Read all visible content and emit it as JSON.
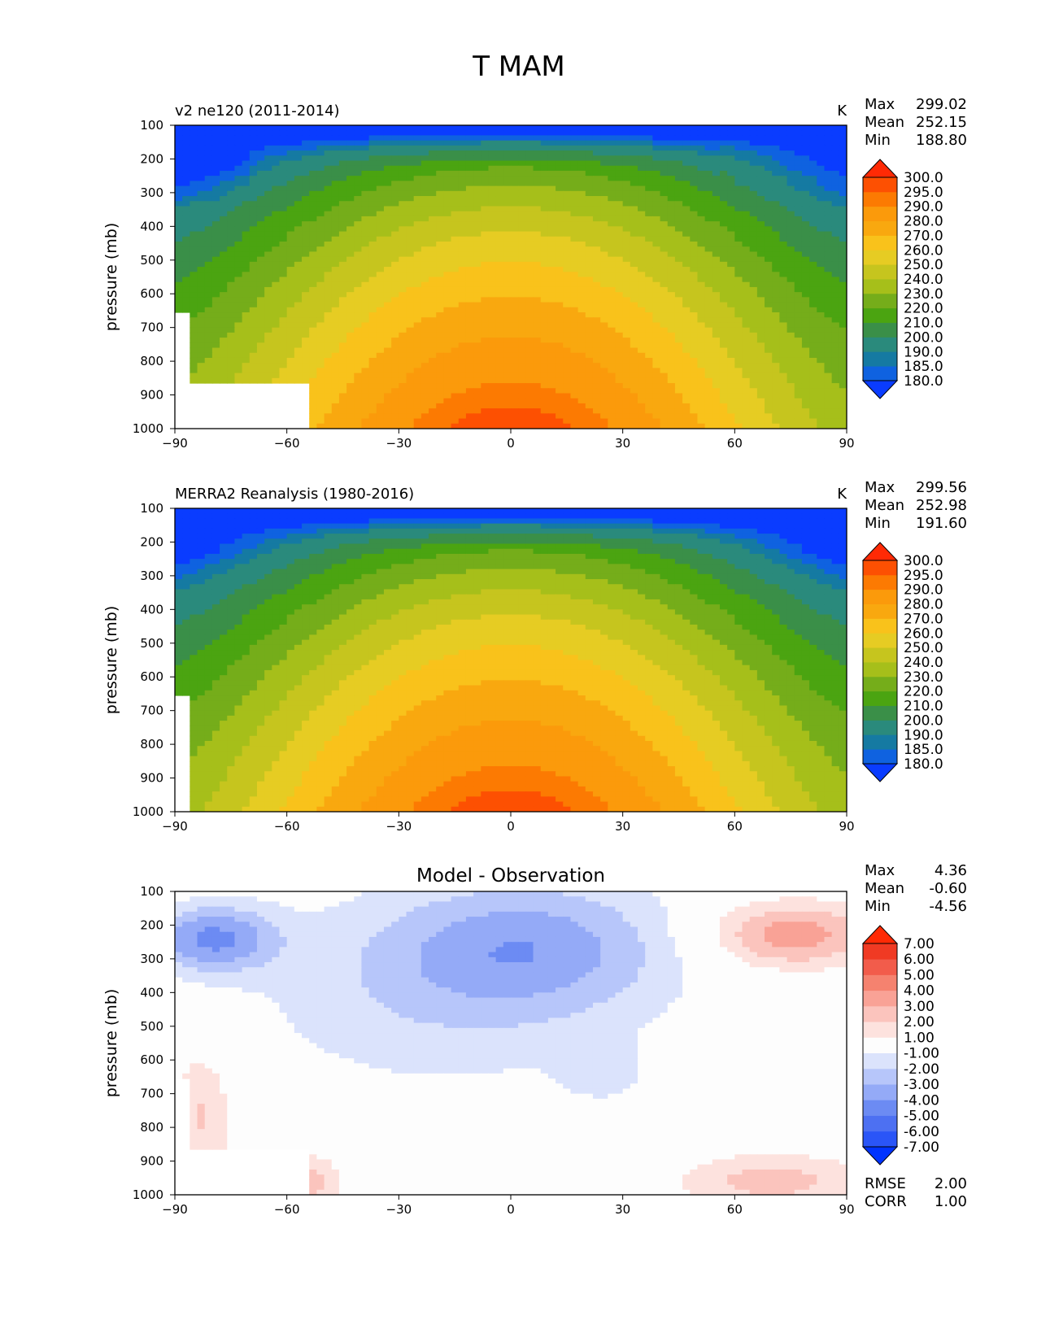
{
  "figure_title": "T MAM",
  "chart_data": [
    {
      "type": "contourf",
      "name": "model",
      "title": "v2 ne120 (2011-2014)",
      "units": "K",
      "xlabel": "",
      "ylabel": "pressure (mb)",
      "xlim": [
        -90,
        90
      ],
      "ylim": [
        1000,
        100
      ],
      "xticks": [
        "−90",
        "−60",
        "−30",
        "0",
        "30",
        "60",
        "90"
      ],
      "yticks": [
        "100",
        "200",
        "300",
        "400",
        "500",
        "600",
        "700",
        "800",
        "900",
        "1000"
      ],
      "stats": [
        {
          "label": "Max",
          "value": "299.02"
        },
        {
          "label": "Mean",
          "value": "252.15"
        },
        {
          "label": "Min",
          "value": "188.80"
        }
      ],
      "colorbar_levels": [
        "180.0",
        "185.0",
        "190.0",
        "200.0",
        "210.0",
        "220.0",
        "230.0",
        "240.0",
        "250.0",
        "260.0",
        "270.0",
        "280.0",
        "290.0",
        "295.0",
        "300.0"
      ],
      "field": {
        "max": 299.02,
        "mean": 252.15,
        "min": 188.8,
        "missing_region": "Antarctic surface below ~870 mb"
      }
    },
    {
      "type": "contourf",
      "name": "obs",
      "title": "MERRA2 Reanalysis (1980-2016)",
      "units": "K",
      "xlabel": "",
      "ylabel": "pressure (mb)",
      "xlim": [
        -90,
        90
      ],
      "ylim": [
        1000,
        100
      ],
      "xticks": [
        "−90",
        "−60",
        "−30",
        "0",
        "30",
        "60",
        "90"
      ],
      "yticks": [
        "100",
        "200",
        "300",
        "400",
        "500",
        "600",
        "700",
        "800",
        "900",
        "1000"
      ],
      "stats": [
        {
          "label": "Max",
          "value": "299.56"
        },
        {
          "label": "Mean",
          "value": "252.98"
        },
        {
          "label": "Min",
          "value": "191.60"
        }
      ],
      "colorbar_levels": [
        "180.0",
        "185.0",
        "190.0",
        "200.0",
        "210.0",
        "220.0",
        "230.0",
        "240.0",
        "250.0",
        "260.0",
        "270.0",
        "280.0",
        "290.0",
        "295.0",
        "300.0"
      ],
      "field": {
        "max": 299.56,
        "mean": 252.98,
        "min": 191.6
      }
    },
    {
      "type": "contourf",
      "name": "diff",
      "title": "Model - Observation",
      "units": "",
      "xlabel": "",
      "ylabel": "pressure (mb)",
      "xlim": [
        -90,
        90
      ],
      "ylim": [
        1000,
        100
      ],
      "xticks": [
        "−90",
        "−60",
        "−30",
        "0",
        "30",
        "60",
        "90"
      ],
      "yticks": [
        "100",
        "200",
        "300",
        "400",
        "500",
        "600",
        "700",
        "800",
        "900",
        "1000"
      ],
      "stats": [
        {
          "label": "Max",
          "value": "4.36"
        },
        {
          "label": "Mean",
          "value": "-0.60"
        },
        {
          "label": "Min",
          "value": "-4.56"
        }
      ],
      "extra_stats": [
        {
          "label": "RMSE",
          "value": "2.00"
        },
        {
          "label": "CORR",
          "value": "1.00"
        }
      ],
      "colorbar_levels": [
        "-7.00",
        "-6.00",
        "-5.00",
        "-4.00",
        "-3.00",
        "-2.00",
        "-1.00",
        "1.00",
        "2.00",
        "3.00",
        "4.00",
        "5.00",
        "6.00",
        "7.00"
      ],
      "field": {
        "max": 4.36,
        "mean": -0.6,
        "min": -4.56
      }
    }
  ]
}
